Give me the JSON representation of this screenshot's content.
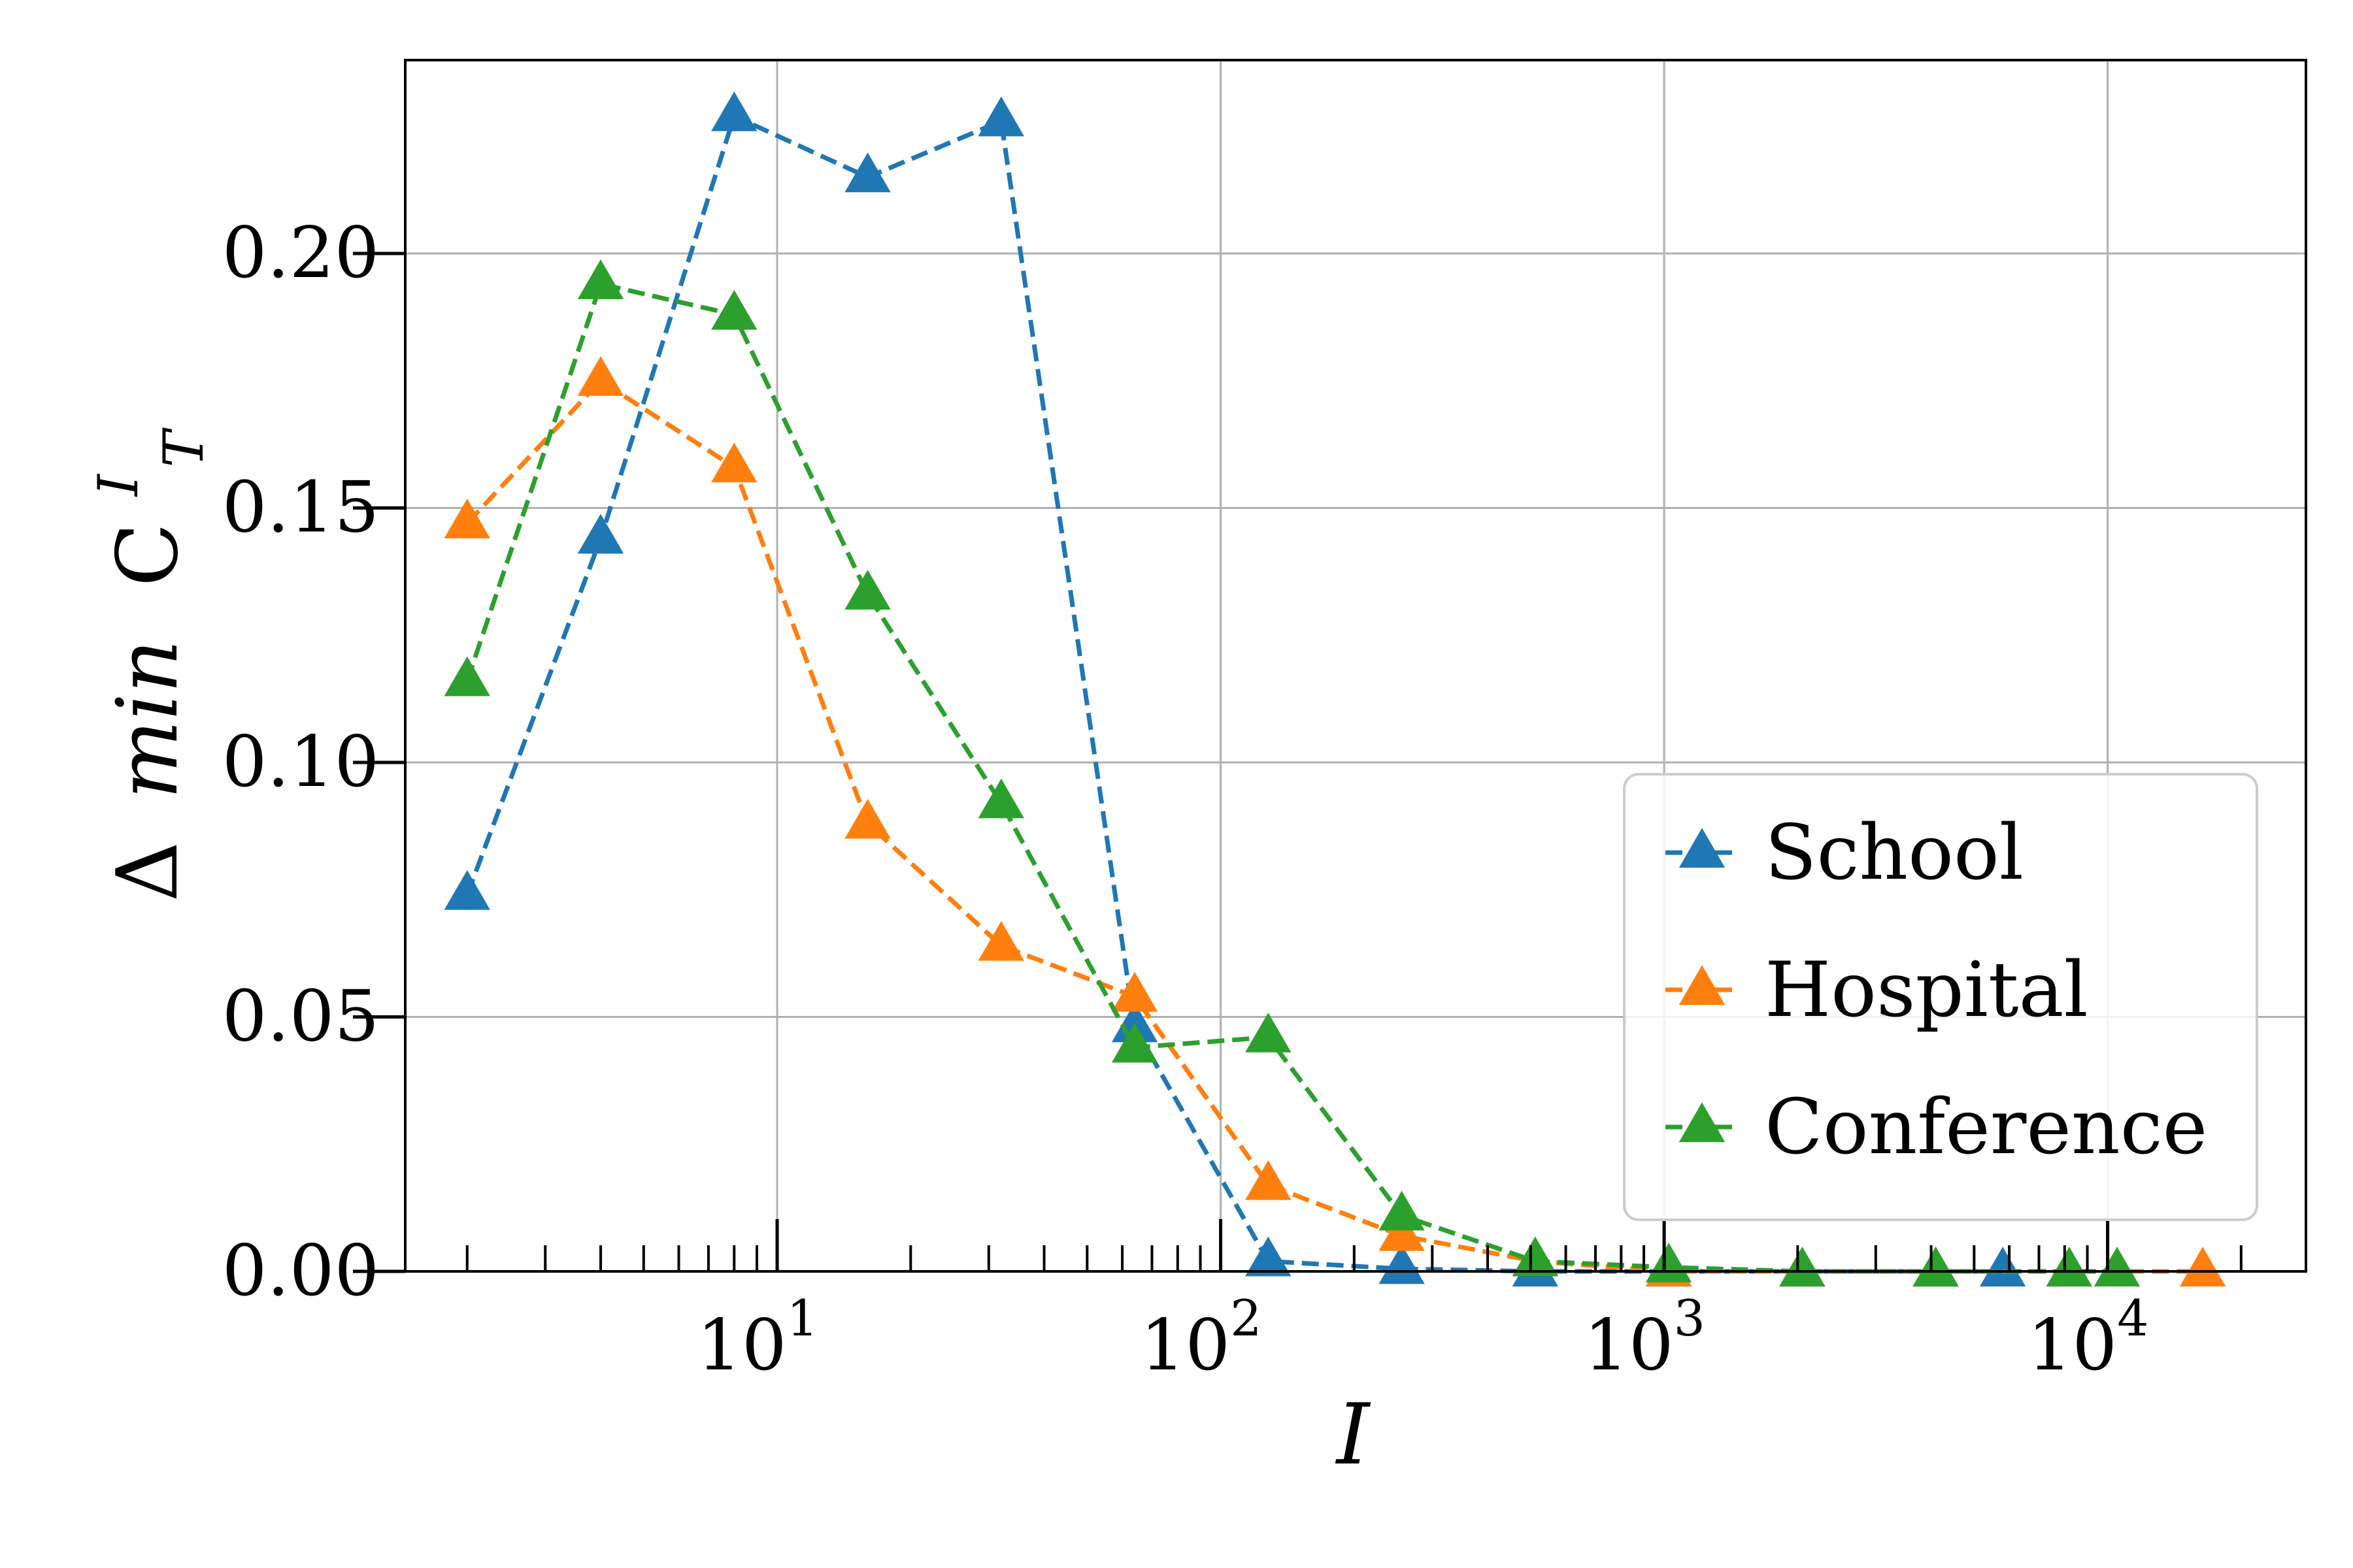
{
  "chart_data": {
    "type": "line",
    "title": "",
    "xlabel": "I",
    "ylabel": {
      "prefix": "Δ",
      "italic": "min",
      "symbol": "C",
      "superscript": "I",
      "subscript": "T"
    },
    "xscale": "log",
    "xlim": [
      1.45,
      28000
    ],
    "ylim": [
      0.0,
      0.238
    ],
    "x": [
      2,
      4,
      8,
      16,
      32,
      64,
      128,
      256,
      512,
      1024,
      2048,
      4096,
      8192,
      16384
    ],
    "yticks": [
      0.0,
      0.05,
      0.1,
      0.15,
      0.2
    ],
    "ytick_labels": [
      "0.00",
      "0.05",
      "0.10",
      "0.15",
      "0.20"
    ],
    "xticks": [
      {
        "value": 10,
        "base": "10",
        "exp": "1"
      },
      {
        "value": 100,
        "base": "10",
        "exp": "2"
      },
      {
        "value": 1000,
        "base": "10",
        "exp": "3"
      },
      {
        "value": 10000,
        "base": "10",
        "exp": "4"
      }
    ],
    "grid": true,
    "legend_position": "lower-right",
    "series": [
      {
        "name": "School",
        "color": "#1f77b4",
        "marker": "triangle-up",
        "linestyle": "dashed",
        "x": [
          2,
          4,
          8,
          16,
          32,
          64,
          128,
          256,
          512,
          1024,
          2048,
          4096,
          5800
        ],
        "values": [
          0.074,
          0.144,
          0.227,
          0.215,
          0.226,
          0.048,
          0.002,
          0.0005,
          0.0,
          0.0,
          0.0,
          0.0,
          0.0
        ]
      },
      {
        "name": "Hospital",
        "color": "#ff7f0e",
        "marker": "triangle-up",
        "linestyle": "dashed",
        "x": [
          2,
          4,
          8,
          16,
          32,
          64,
          128,
          256,
          512,
          1024,
          2048,
          4096,
          8192,
          16384
        ],
        "values": [
          0.147,
          0.175,
          0.158,
          0.088,
          0.064,
          0.054,
          0.017,
          0.007,
          0.002,
          0.0,
          0.0,
          0.0,
          0.0,
          0.0
        ]
      },
      {
        "name": "Conference",
        "color": "#2ca02c",
        "marker": "triangle-up",
        "linestyle": "dashed",
        "x": [
          2,
          4,
          8,
          16,
          32,
          64,
          128,
          256,
          512,
          1024,
          2048,
          4096,
          8192,
          10500
        ],
        "values": [
          0.116,
          0.194,
          0.188,
          0.133,
          0.092,
          0.044,
          0.046,
          0.011,
          0.002,
          0.0008,
          0.0,
          0.0,
          0.0,
          0.0
        ]
      }
    ]
  }
}
